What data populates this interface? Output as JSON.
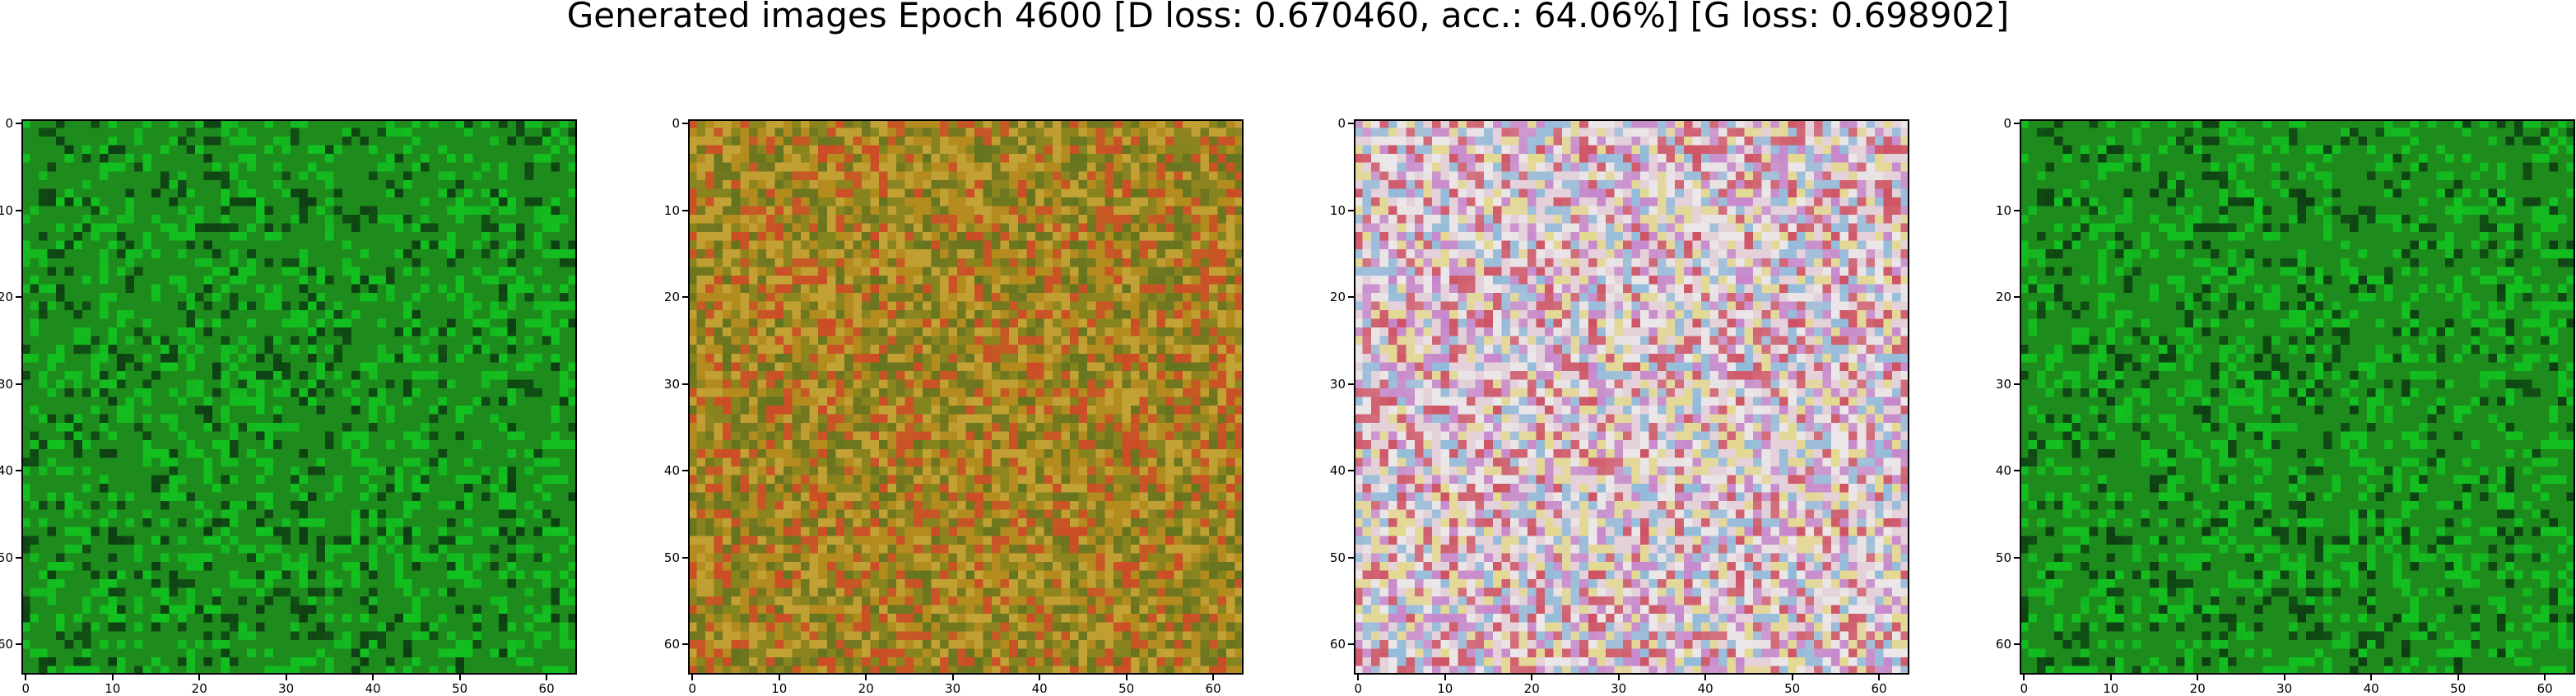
{
  "figure": {
    "title": "Generated images Epoch 4600 [D loss: 0.670460, acc.: 64.06%] [G loss: 0.698902]"
  },
  "axes_ticks": {
    "x": [
      "0",
      "10",
      "20",
      "30",
      "40",
      "50",
      "60"
    ],
    "y": [
      "0",
      "10",
      "20",
      "30",
      "40",
      "50",
      "60"
    ]
  },
  "panels": [
    {
      "id": "sample-1",
      "description_palette": "green",
      "base": "#1d8c1d",
      "accent": "#0fd020",
      "dark": "#0a2a10"
    },
    {
      "id": "sample-2",
      "description_palette": "orange",
      "base": "#b38a20",
      "accent": "#e0301c",
      "dark": "#5a3a10"
    },
    {
      "id": "sample-3",
      "description_palette": "pastel",
      "base": "#e0d0d6",
      "accent": "#b060d0",
      "dark": "#6a1020"
    },
    {
      "id": "sample-4",
      "description_palette": "green",
      "base": "#1d8c1d",
      "accent": "#0fd020",
      "dark": "#0a2a10"
    }
  ]
}
